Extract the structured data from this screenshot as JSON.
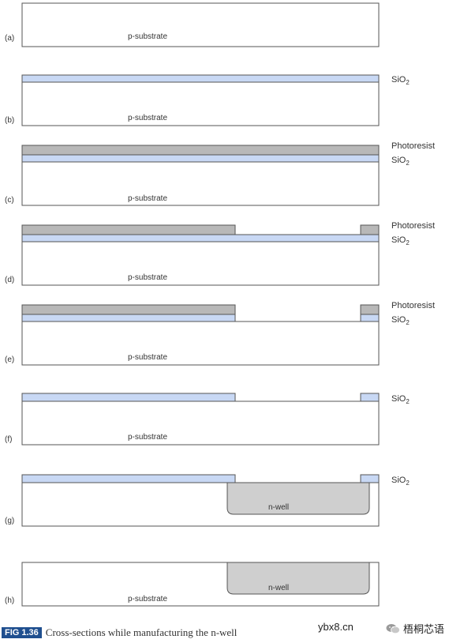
{
  "labels": {
    "substrate": "p-substrate",
    "sio2_main": "SiO",
    "sio2_sub": "2",
    "photoresist": "Photoresist",
    "nwell": "n-well"
  },
  "steps": [
    {
      "id": "a",
      "label": "(a)"
    },
    {
      "id": "b",
      "label": "(b)"
    },
    {
      "id": "c",
      "label": "(c)"
    },
    {
      "id": "d",
      "label": "(d)"
    },
    {
      "id": "e",
      "label": "(e)"
    },
    {
      "id": "f",
      "label": "(f)"
    },
    {
      "id": "g",
      "label": "(g)"
    },
    {
      "id": "h",
      "label": "(h)"
    }
  ],
  "caption": {
    "tag": "FIG 1.36",
    "text": "Cross-sections while manufacturing the n-well"
  },
  "watermark": {
    "site": "ybx8.cn",
    "brand": "梧桐芯语"
  },
  "colors": {
    "oxide": "#c8d8f4",
    "photoresist": "#b8b8b8",
    "nwell": "#cfcfcf",
    "outline": "#555555",
    "figtag": "#1f4f8f"
  }
}
